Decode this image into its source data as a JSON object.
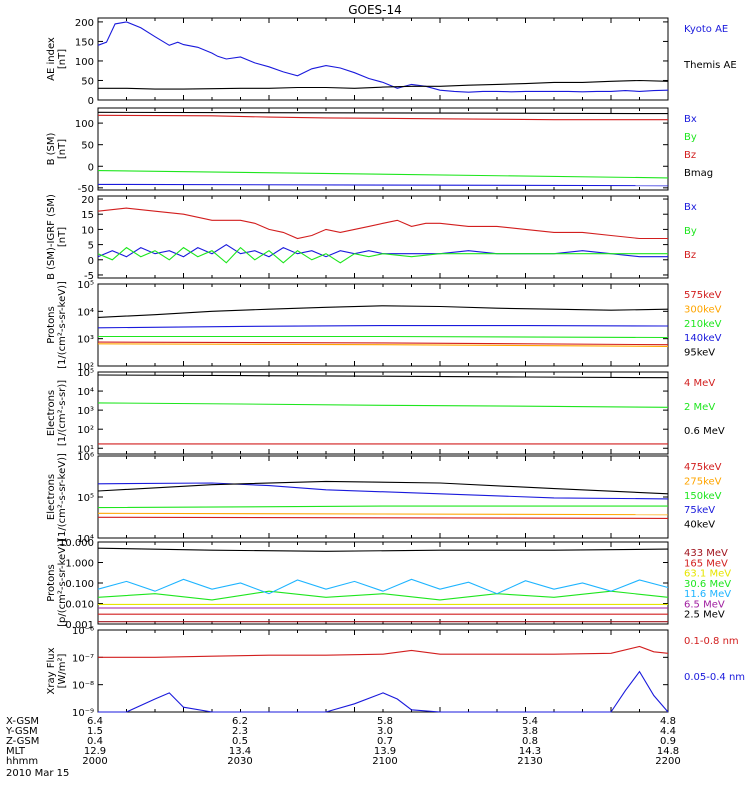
{
  "title": "GOES-14",
  "colors": {
    "black": "#000000",
    "blue": "#1a1adc",
    "green": "#1ee61e",
    "red": "#d21e1e",
    "orange": "#ffa500",
    "yellow": "#e6e600",
    "cyan": "#1eb4ff",
    "purple": "#a01ea0",
    "darkred": "#a0141e"
  },
  "x_axis": {
    "rows": [
      {
        "label": "X-GSM",
        "values": [
          "6.4",
          "6.2",
          "5.8",
          "5.4",
          "4.8"
        ]
      },
      {
        "label": "Y-GSM",
        "values": [
          "1.5",
          "2.3",
          "3.0",
          "3.8",
          "4.4"
        ]
      },
      {
        "label": "Z-GSM",
        "values": [
          "0.4",
          "0.5",
          "0.7",
          "0.8",
          "0.9"
        ]
      },
      {
        "label": "MLT",
        "values": [
          "12.9",
          "13.4",
          "13.9",
          "14.3",
          "14.8"
        ]
      },
      {
        "label": "hhmm",
        "values": [
          "2000",
          "2030",
          "2100",
          "2130",
          "2200"
        ]
      }
    ],
    "date": "2010 Mar 15"
  },
  "chart_data": [
    {
      "type": "line",
      "ylabel": "AE index",
      "yunits": "[nT]",
      "scale": "linear",
      "ylim": [
        0,
        210
      ],
      "yticks": [
        {
          "v": 0,
          "t": "0"
        },
        {
          "v": 50,
          "t": "50"
        },
        {
          "v": 100,
          "t": "100"
        },
        {
          "v": 150,
          "t": "150"
        },
        {
          "v": 200,
          "t": "200"
        }
      ],
      "series": [
        {
          "name": "Kyoto AE",
          "color": "blue",
          "x": [
            0,
            3,
            6,
            10,
            15,
            20,
            25,
            28,
            30,
            35,
            40,
            42,
            45,
            50,
            55,
            60,
            65,
            70,
            75,
            80,
            85,
            90,
            95,
            100,
            105,
            110,
            115,
            120,
            125,
            130,
            135,
            140,
            145,
            150,
            155,
            160,
            165,
            170,
            175,
            180,
            185,
            190,
            195,
            200
          ],
          "y": [
            140,
            148,
            195,
            200,
            185,
            162,
            140,
            148,
            142,
            135,
            120,
            112,
            105,
            110,
            95,
            85,
            72,
            62,
            80,
            88,
            82,
            70,
            55,
            45,
            30,
            40,
            35,
            25,
            22,
            20,
            22,
            22,
            21,
            22,
            22,
            22,
            22,
            21,
            22,
            22,
            24,
            22,
            24,
            25
          ]
        },
        {
          "name": "Themis AE",
          "color": "black",
          "x": [
            0,
            10,
            20,
            30,
            40,
            50,
            60,
            70,
            80,
            90,
            100,
            110,
            120,
            130,
            140,
            150,
            160,
            170,
            180,
            190,
            200
          ],
          "y": [
            30,
            30,
            28,
            28,
            29,
            30,
            30,
            32,
            32,
            30,
            33,
            35,
            35,
            38,
            40,
            42,
            45,
            45,
            48,
            50,
            48
          ]
        }
      ]
    },
    {
      "type": "line",
      "ylabel": "B (SM)",
      "yunits": "[nT]",
      "scale": "linear",
      "ylim": [
        -55,
        135
      ],
      "yticks": [
        {
          "v": -50,
          "t": "-50"
        },
        {
          "v": 0,
          "t": "0"
        },
        {
          "v": 50,
          "t": "50"
        },
        {
          "v": 100,
          "t": "100"
        }
      ],
      "series": [
        {
          "name": "Bx",
          "color": "blue",
          "x": [
            0,
            200
          ],
          "y": [
            -42,
            -45
          ]
        },
        {
          "name": "By",
          "color": "green",
          "x": [
            0,
            200
          ],
          "y": [
            -10,
            -27
          ]
        },
        {
          "name": "Bz",
          "color": "red",
          "x": [
            0,
            40,
            60,
            80,
            120,
            160,
            200
          ],
          "y": [
            118,
            117,
            114,
            112,
            110,
            108,
            108
          ]
        },
        {
          "name": "Bmag",
          "color": "black",
          "x": [
            0,
            200
          ],
          "y": [
            125,
            122
          ]
        }
      ]
    },
    {
      "type": "line",
      "ylabel": "B (SM)-IGRF (SM)",
      "yunits": "[nT]",
      "scale": "linear",
      "ylim": [
        -6,
        21
      ],
      "yticks": [
        {
          "v": -5,
          "t": "-5"
        },
        {
          "v": 0,
          "t": "0"
        },
        {
          "v": 5,
          "t": "5"
        },
        {
          "v": 10,
          "t": "10"
        },
        {
          "v": 15,
          "t": "15"
        },
        {
          "v": 20,
          "t": "20"
        }
      ],
      "series": [
        {
          "name": "Bx",
          "color": "blue",
          "x": [
            0,
            5,
            10,
            15,
            20,
            25,
            30,
            35,
            40,
            45,
            50,
            55,
            60,
            65,
            70,
            75,
            80,
            85,
            90,
            95,
            100,
            110,
            120,
            130,
            140,
            150,
            160,
            170,
            180,
            190,
            200
          ],
          "y": [
            1,
            3,
            1,
            4,
            2,
            3,
            1,
            4,
            2,
            5,
            2,
            3,
            1,
            4,
            2,
            3,
            1,
            3,
            2,
            3,
            2,
            2,
            2,
            3,
            2,
            2,
            2,
            3,
            2,
            1,
            1
          ]
        },
        {
          "name": "By",
          "color": "green",
          "x": [
            0,
            5,
            10,
            15,
            20,
            25,
            30,
            35,
            40,
            45,
            50,
            55,
            60,
            65,
            70,
            75,
            80,
            85,
            90,
            95,
            100,
            110,
            120,
            130,
            140,
            150,
            160,
            170,
            180,
            190,
            200
          ],
          "y": [
            2,
            0,
            4,
            1,
            3,
            0,
            4,
            1,
            3,
            -1,
            4,
            0,
            3,
            -1,
            3,
            0,
            2,
            -1,
            2,
            1,
            2,
            1,
            2,
            2,
            2,
            2,
            2,
            2,
            2,
            2,
            2
          ]
        },
        {
          "name": "Bz",
          "color": "red",
          "x": [
            0,
            10,
            20,
            30,
            40,
            50,
            55,
            60,
            65,
            70,
            75,
            80,
            85,
            90,
            95,
            100,
            105,
            110,
            115,
            120,
            130,
            140,
            150,
            160,
            170,
            180,
            190,
            200
          ],
          "y": [
            16,
            17,
            16,
            15,
            13,
            13,
            12,
            10,
            9,
            7,
            8,
            10,
            9,
            10,
            11,
            12,
            13,
            11,
            12,
            12,
            11,
            11,
            10,
            9,
            9,
            8,
            7,
            7
          ]
        }
      ]
    },
    {
      "type": "line",
      "ylabel": "Protons",
      "yunits": "[1/(cm²-s-sr-keV)]",
      "scale": "log",
      "ylim": [
        100,
        100000
      ],
      "yticks": [
        {
          "v": 100,
          "t": "10²"
        },
        {
          "v": 1000,
          "t": "10³"
        },
        {
          "v": 10000,
          "t": "10⁴"
        },
        {
          "v": 100000,
          "t": "10⁵"
        }
      ],
      "series": [
        {
          "name": "575keV",
          "color": "red",
          "x": [
            0,
            100,
            200
          ],
          "y": [
            750,
            700,
            600
          ]
        },
        {
          "name": "300keV",
          "color": "orange",
          "x": [
            0,
            100,
            200
          ],
          "y": [
            650,
            600,
            520
          ]
        },
        {
          "name": "210keV",
          "color": "green",
          "x": [
            0,
            100,
            200
          ],
          "y": [
            1200,
            1200,
            1100
          ]
        },
        {
          "name": "140keV",
          "color": "blue",
          "x": [
            0,
            50,
            100,
            150,
            200
          ],
          "y": [
            2500,
            2800,
            3000,
            3000,
            2900
          ]
        },
        {
          "name": "95keV",
          "color": "black",
          "x": [
            0,
            20,
            40,
            60,
            80,
            100,
            120,
            140,
            160,
            180,
            200
          ],
          "y": [
            6000,
            7500,
            10000,
            12000,
            14000,
            16000,
            15000,
            13000,
            12000,
            11000,
            12000
          ]
        }
      ]
    },
    {
      "type": "line",
      "ylabel": "Electrons",
      "yunits": "[1/(cm²-s-sr)]",
      "scale": "log",
      "ylim": [
        5,
        100000
      ],
      "yticks": [
        {
          "v": 10,
          "t": "10¹"
        },
        {
          "v": 100,
          "t": "10²"
        },
        {
          "v": 1000,
          "t": "10³"
        },
        {
          "v": 10000,
          "t": "10⁴"
        },
        {
          "v": 100000,
          "t": "10⁵"
        }
      ],
      "series": [
        {
          "name": "4 MeV",
          "color": "red",
          "x": [
            0,
            50,
            100,
            150,
            200
          ],
          "y": [
            17,
            17,
            17,
            17,
            17
          ]
        },
        {
          "name": "2 MeV",
          "color": "green",
          "x": [
            0,
            50,
            100,
            150,
            200
          ],
          "y": [
            2400,
            2100,
            1800,
            1600,
            1400
          ]
        },
        {
          "name": "0.6 MeV",
          "color": "black",
          "x": [
            0,
            50,
            100,
            150,
            200
          ],
          "y": [
            70000,
            65000,
            60000,
            55000,
            50000
          ]
        }
      ]
    },
    {
      "type": "line",
      "ylabel": "Electrons",
      "yunits": "[1/(cm²-s-sr-keV)]",
      "scale": "log",
      "ylim": [
        10000,
        1000000
      ],
      "yticks": [
        {
          "v": 10000,
          "t": "10⁴"
        },
        {
          "v": 100000,
          "t": "10⁵"
        },
        {
          "v": 1000000,
          "t": "10⁶"
        }
      ],
      "series": [
        {
          "name": "475keV",
          "color": "red",
          "x": [
            0,
            200
          ],
          "y": [
            32000,
            30000
          ]
        },
        {
          "name": "275keV",
          "color": "orange",
          "x": [
            0,
            200
          ],
          "y": [
            40000,
            37000
          ]
        },
        {
          "name": "150keV",
          "color": "green",
          "x": [
            0,
            100,
            200
          ],
          "y": [
            55000,
            60000,
            60000
          ]
        },
        {
          "name": "75keV",
          "color": "blue",
          "x": [
            0,
            40,
            60,
            80,
            120,
            160,
            200
          ],
          "y": [
            210000,
            220000,
            190000,
            150000,
            120000,
            95000,
            90000
          ]
        },
        {
          "name": "40keV",
          "color": "black",
          "x": [
            0,
            40,
            80,
            120,
            160,
            200
          ],
          "y": [
            140000,
            200000,
            240000,
            220000,
            160000,
            120000
          ]
        }
      ]
    },
    {
      "type": "line",
      "ylabel": "Protons",
      "yunits": "[p/(cm²-s-sr-keV)]",
      "scale": "log",
      "ylim": [
        0.001,
        10
      ],
      "yticks": [
        {
          "v": 0.001,
          "t": "0.001"
        },
        {
          "v": 0.01,
          "t": "0.010"
        },
        {
          "v": 0.1,
          "t": "0.100"
        },
        {
          "v": 1,
          "t": "1.000"
        },
        {
          "v": 10,
          "t": "10.000"
        }
      ],
      "series": [
        {
          "name": "433 MeV",
          "color": "darkred",
          "x": [
            0,
            200
          ],
          "y": [
            0.0013,
            0.0013
          ]
        },
        {
          "name": "165 MeV",
          "color": "red",
          "x": [
            0,
            200
          ],
          "y": [
            0.003,
            0.003
          ]
        },
        {
          "name": "63.1 MeV",
          "color": "yellow",
          "x": [
            0,
            200
          ],
          "y": [
            0.009,
            0.009
          ]
        },
        {
          "name": "30.6 MeV",
          "color": "green",
          "x": [
            0,
            20,
            40,
            60,
            80,
            100,
            120,
            140,
            160,
            180,
            200
          ],
          "y": [
            0.02,
            0.03,
            0.015,
            0.04,
            0.02,
            0.03,
            0.015,
            0.03,
            0.02,
            0.04,
            0.02
          ]
        },
        {
          "name": "11.6 MeV",
          "color": "cyan",
          "x": [
            0,
            10,
            20,
            30,
            40,
            50,
            60,
            70,
            80,
            90,
            100,
            110,
            120,
            130,
            140,
            150,
            160,
            170,
            180,
            190,
            200
          ],
          "y": [
            0.05,
            0.12,
            0.04,
            0.15,
            0.05,
            0.1,
            0.03,
            0.14,
            0.05,
            0.12,
            0.04,
            0.15,
            0.05,
            0.11,
            0.03,
            0.13,
            0.05,
            0.1,
            0.04,
            0.14,
            0.06
          ]
        },
        {
          "name": "6.5 MeV",
          "color": "purple",
          "x": [
            0,
            200
          ],
          "y": [
            0.006,
            0.006
          ]
        },
        {
          "name": "2.5 MeV",
          "color": "black",
          "x": [
            0,
            40,
            80,
            120,
            160,
            200
          ],
          "y": [
            5,
            4,
            3.5,
            4,
            4,
            4.5
          ]
        }
      ]
    },
    {
      "type": "line",
      "ylabel": "Xray Flux",
      "yunits": "[W/m²]",
      "scale": "log",
      "ylim": [
        1e-09,
        1e-06
      ],
      "yticks": [
        {
          "v": 1e-09,
          "t": "10⁻⁹"
        },
        {
          "v": 1e-08,
          "t": "10⁻⁸"
        },
        {
          "v": 1e-07,
          "t": "10⁻⁷"
        },
        {
          "v": 1e-06,
          "t": "10⁻⁶"
        }
      ],
      "series": [
        {
          "name": "0.1-0.8 nm",
          "color": "red",
          "x": [
            0,
            20,
            40,
            60,
            80,
            100,
            110,
            120,
            140,
            160,
            180,
            190,
            195,
            200
          ],
          "y": [
            1e-07,
            1e-07,
            1.1e-07,
            1.2e-07,
            1.2e-07,
            1.3e-07,
            1.8e-07,
            1.3e-07,
            1.3e-07,
            1.3e-07,
            1.4e-07,
            2.5e-07,
            1.6e-07,
            1.4e-07
          ]
        },
        {
          "name": "0.05-0.4 nm",
          "color": "blue",
          "x": [
            0,
            10,
            20,
            25,
            30,
            40,
            60,
            80,
            90,
            100,
            105,
            110,
            120,
            140,
            160,
            180,
            185,
            190,
            195,
            200
          ],
          "y": [
            1e-09,
            1e-09,
            3e-09,
            5e-09,
            1.5e-09,
            1e-09,
            1e-09,
            1e-09,
            2e-09,
            5e-09,
            3e-09,
            1.2e-09,
            1e-09,
            1e-09,
            1e-09,
            1e-09,
            6e-09,
            3e-08,
            4e-09,
            1e-09
          ]
        }
      ]
    }
  ]
}
